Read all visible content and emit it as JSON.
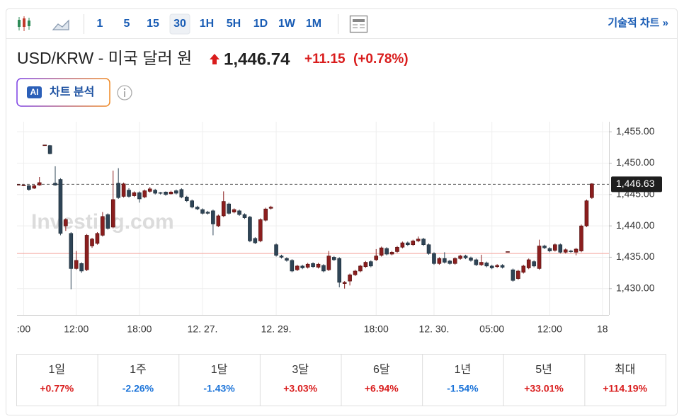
{
  "toolbar": {
    "intervals": [
      "1",
      "5",
      "15",
      "30",
      "1H",
      "5H",
      "1D",
      "1W",
      "1M"
    ],
    "selected_interval": "30",
    "technical_chart_link": "기술적 차트 »"
  },
  "header": {
    "title": "USD/KRW - 미국 달러 원",
    "price": "1,446.74",
    "change": "+11.15",
    "change_percent": "(+0.78%)"
  },
  "ai_button": {
    "badge": "AI",
    "label": "차트 분석"
  },
  "chart_data": {
    "type": "candlestick",
    "watermark": "Investing.com",
    "categories": [
      null,
      ":00",
      null,
      null,
      null,
      null,
      null,
      null,
      null,
      null,
      null,
      "12:00",
      null,
      null,
      null,
      null,
      null,
      null,
      null,
      null,
      null,
      null,
      null,
      "18:00",
      null,
      null,
      null,
      null,
      null,
      null,
      null,
      null,
      null,
      null,
      null,
      "12. 27.",
      null,
      null,
      null,
      null,
      null,
      null,
      null,
      null,
      null,
      null,
      null,
      null,
      null,
      "12. 29.",
      null,
      null,
      null,
      null,
      null,
      null,
      null,
      null,
      null,
      null,
      null,
      null,
      null,
      null,
      null,
      null,
      null,
      null,
      "18:00",
      null,
      null,
      null,
      null,
      null,
      null,
      null,
      null,
      null,
      null,
      "12. 30.",
      null,
      null,
      null,
      null,
      null,
      null,
      null,
      null,
      null,
      null,
      "05:00",
      null,
      null,
      null,
      null,
      null,
      null,
      null,
      null,
      null,
      null,
      "12:00",
      null,
      null,
      null,
      null,
      null,
      null,
      null,
      null,
      null,
      "18"
    ],
    "ohlc": [
      [
        1446.6,
        1446.6,
        1446.6,
        1446.6
      ],
      [
        1446.5,
        1446.6,
        1446.4,
        1446.5
      ],
      [
        1446.4,
        1446.5,
        1445.6,
        1445.8
      ],
      [
        1446.0,
        1446.6,
        1445.9,
        1446.4
      ],
      [
        1446.5,
        1447.8,
        1446.4,
        1446.9
      ],
      [
        1452.9,
        1452.9,
        1452.9,
        1452.9
      ],
      [
        1452.8,
        1452.9,
        1451.4,
        1451.5
      ],
      [
        1446.8,
        1449.5,
        1446.4,
        1446.5
      ],
      [
        1447.4,
        1447.6,
        1438.5,
        1438.8
      ],
      [
        1440.0,
        1441.2,
        1439.2,
        1441.0
      ],
      [
        1438.8,
        1439.0,
        1429.9,
        1433.2
      ],
      [
        1433.2,
        1436.0,
        1433.0,
        1434.5
      ],
      [
        1434.0,
        1434.2,
        1432.5,
        1432.8
      ],
      [
        1433.0,
        1438.7,
        1432.8,
        1438.5
      ],
      [
        1436.8,
        1438.1,
        1436.5,
        1437.9
      ],
      [
        1437.2,
        1439.0,
        1437.0,
        1438.8
      ],
      [
        1438.5,
        1442.2,
        1438.3,
        1441.5
      ],
      [
        1441.8,
        1442.0,
        1439.4,
        1439.6
      ],
      [
        1439.8,
        1448.8,
        1439.6,
        1444.2
      ],
      [
        1446.8,
        1449.2,
        1444.3,
        1444.5
      ],
      [
        1444.7,
        1446.9,
        1444.5,
        1446.7
      ],
      [
        1445.7,
        1446.0,
        1444.5,
        1444.7
      ],
      [
        1444.8,
        1445.5,
        1444.6,
        1445.3
      ],
      [
        1445.3,
        1445.5,
        1443.7,
        1444.3
      ],
      [
        1444.6,
        1445.8,
        1444.4,
        1445.6
      ],
      [
        1445.5,
        1446.2,
        1445.3,
        1445.9
      ],
      [
        1445.7,
        1445.9,
        1445.0,
        1445.2
      ],
      [
        1445.3,
        1445.4,
        1445.0,
        1445.2
      ],
      [
        1445.4,
        1445.5,
        1444.8,
        1445.0
      ],
      [
        1445.1,
        1445.6,
        1445.0,
        1445.4
      ],
      [
        1445.6,
        1445.8,
        1445.0,
        1445.2
      ],
      [
        1445.8,
        1446.0,
        1444.4,
        1444.6
      ],
      [
        1444.6,
        1444.8,
        1443.8,
        1444.0
      ],
      [
        1444.0,
        1444.2,
        1442.8,
        1443.0
      ],
      [
        1443.0,
        1443.2,
        1442.5,
        1442.7
      ],
      [
        1442.6,
        1442.8,
        1441.8,
        1442.0
      ],
      [
        1442.2,
        1442.4,
        1441.8,
        1442.0
      ],
      [
        1442.4,
        1442.6,
        1438.5,
        1440.3
      ],
      [
        1440.0,
        1441.8,
        1439.8,
        1441.6
      ],
      [
        1441.6,
        1445.5,
        1441.4,
        1443.9
      ],
      [
        1443.5,
        1443.7,
        1441.8,
        1442.0
      ],
      [
        1442.2,
        1442.8,
        1442.0,
        1442.6
      ],
      [
        1442.4,
        1442.6,
        1441.6,
        1441.8
      ],
      [
        1441.8,
        1442.0,
        1441.1,
        1441.3
      ],
      [
        1441.4,
        1441.6,
        1437.4,
        1437.6
      ],
      [
        1438.0,
        1438.2,
        1437.1,
        1437.3
      ],
      [
        1437.6,
        1441.2,
        1437.4,
        1441.0
      ],
      [
        1440.9,
        1442.9,
        1440.7,
        1442.7
      ],
      [
        1442.8,
        1443.2,
        1442.6,
        1443.0
      ],
      [
        1437.0,
        1437.2,
        1435.1,
        1435.3
      ],
      [
        1435.2,
        1435.4,
        1434.8,
        1435.0
      ],
      [
        1434.8,
        1435.0,
        1434.3,
        1434.5
      ],
      [
        1434.5,
        1434.7,
        1432.6,
        1432.8
      ],
      [
        1433.0,
        1433.8,
        1432.8,
        1433.6
      ],
      [
        1433.6,
        1433.8,
        1433.1,
        1433.3
      ],
      [
        1433.4,
        1434.1,
        1433.2,
        1433.9
      ],
      [
        1434.0,
        1434.2,
        1433.3,
        1433.5
      ],
      [
        1433.4,
        1434.1,
        1433.2,
        1433.9
      ],
      [
        1433.7,
        1433.9,
        1432.6,
        1432.8
      ],
      [
        1433.0,
        1436.0,
        1432.8,
        1435.2
      ],
      [
        1435.0,
        1435.2,
        1434.4,
        1434.6
      ],
      [
        1434.8,
        1435.0,
        1430.2,
        1431.0
      ],
      [
        1430.8,
        1431.2,
        1430.0,
        1431.0
      ],
      [
        1431.2,
        1432.4,
        1430.5,
        1432.2
      ],
      [
        1432.2,
        1433.0,
        1432.0,
        1432.8
      ],
      [
        1432.8,
        1433.8,
        1432.6,
        1433.6
      ],
      [
        1433.5,
        1434.4,
        1433.3,
        1434.2
      ],
      [
        1434.3,
        1434.5,
        1433.4,
        1433.6
      ],
      [
        1434.6,
        1436.3,
        1434.4,
        1435.2
      ],
      [
        1435.3,
        1436.7,
        1435.1,
        1436.5
      ],
      [
        1436.4,
        1436.6,
        1435.3,
        1435.5
      ],
      [
        1435.5,
        1436.0,
        1435.3,
        1435.8
      ],
      [
        1435.9,
        1436.8,
        1435.7,
        1436.6
      ],
      [
        1436.6,
        1437.5,
        1436.4,
        1437.3
      ],
      [
        1437.3,
        1437.5,
        1436.8,
        1437.0
      ],
      [
        1437.0,
        1437.8,
        1436.8,
        1437.6
      ],
      [
        1437.6,
        1438.3,
        1437.4,
        1437.9
      ],
      [
        1437.9,
        1438.1,
        1436.8,
        1437.0
      ],
      [
        1437.0,
        1437.2,
        1435.4,
        1435.6
      ],
      [
        1435.6,
        1435.8,
        1433.8,
        1434.0
      ],
      [
        1434.0,
        1435.0,
        1433.8,
        1434.8
      ],
      [
        1434.8,
        1435.8,
        1434.0,
        1434.2
      ],
      [
        1434.4,
        1434.6,
        1433.8,
        1434.0
      ],
      [
        1434.0,
        1435.0,
        1433.8,
        1434.8
      ],
      [
        1434.8,
        1435.4,
        1434.6,
        1435.2
      ],
      [
        1435.2,
        1435.4,
        1434.7,
        1434.9
      ],
      [
        1434.9,
        1435.1,
        1434.3,
        1434.5
      ],
      [
        1434.6,
        1434.8,
        1433.6,
        1433.8
      ],
      [
        1433.8,
        1435.4,
        1433.6,
        1434.2
      ],
      [
        1434.1,
        1434.3,
        1433.4,
        1433.6
      ],
      [
        1433.6,
        1433.8,
        1433.1,
        1433.3
      ],
      [
        1433.5,
        1433.9,
        1433.3,
        1433.7
      ],
      [
        1433.7,
        1433.9,
        1433.2,
        1433.4
      ],
      [
        1435.9,
        1435.9,
        1435.9,
        1435.9
      ],
      [
        1433.0,
        1433.2,
        1431.1,
        1431.3
      ],
      [
        1431.6,
        1433.0,
        1431.4,
        1432.8
      ],
      [
        1432.6,
        1433.8,
        1432.4,
        1433.6
      ],
      [
        1433.3,
        1434.8,
        1433.1,
        1434.6
      ],
      [
        1434.3,
        1434.5,
        1433.4,
        1433.6
      ],
      [
        1433.2,
        1437.8,
        1433.0,
        1436.8
      ],
      [
        1436.8,
        1437.0,
        1436.3,
        1436.5
      ],
      [
        1436.4,
        1436.6,
        1435.8,
        1436.0
      ],
      [
        1436.1,
        1437.2,
        1435.9,
        1437.0
      ],
      [
        1437.0,
        1437.2,
        1435.6,
        1435.8
      ],
      [
        1435.8,
        1436.4,
        1435.6,
        1436.2
      ],
      [
        1436.0,
        1436.2,
        1435.7,
        1435.9
      ],
      [
        1435.8,
        1436.5,
        1435.3,
        1436.3
      ],
      [
        1436.0,
        1440.2,
        1435.8,
        1440.0
      ],
      [
        1440.0,
        1444.2,
        1439.8,
        1444.0
      ],
      [
        1444.5,
        1446.8,
        1444.3,
        1446.7
      ],
      null,
      null
    ],
    "up_color": "#8b1e1e",
    "down_color": "#2e4456",
    "ylim": [
      1425.8,
      1456.6
    ],
    "yticks": [
      {
        "value": 1430,
        "label": "1,430.00"
      },
      {
        "value": 1435,
        "label": "1,435.00"
      },
      {
        "value": 1440,
        "label": "1,440.00"
      },
      {
        "value": 1445,
        "label": "1,445.00"
      },
      {
        "value": 1450,
        "label": "1,450.00"
      },
      {
        "value": 1455,
        "label": "1,455.00"
      }
    ],
    "grid": true,
    "price_line": {
      "value": 1446.63,
      "label": "1,446.63"
    },
    "ref_line": {
      "value": 1435.6,
      "color": "#f3a59d"
    }
  },
  "performance": [
    {
      "period": "1일",
      "change": "+0.77%"
    },
    {
      "period": "1주",
      "change": "-2.26%"
    },
    {
      "period": "1달",
      "change": "-1.43%"
    },
    {
      "period": "3달",
      "change": "+3.03%"
    },
    {
      "period": "6달",
      "change": "+6.94%"
    },
    {
      "period": "1년",
      "change": "-1.54%"
    },
    {
      "period": "5년",
      "change": "+33.01%"
    },
    {
      "period": "최대",
      "change": "+114.19%"
    }
  ]
}
